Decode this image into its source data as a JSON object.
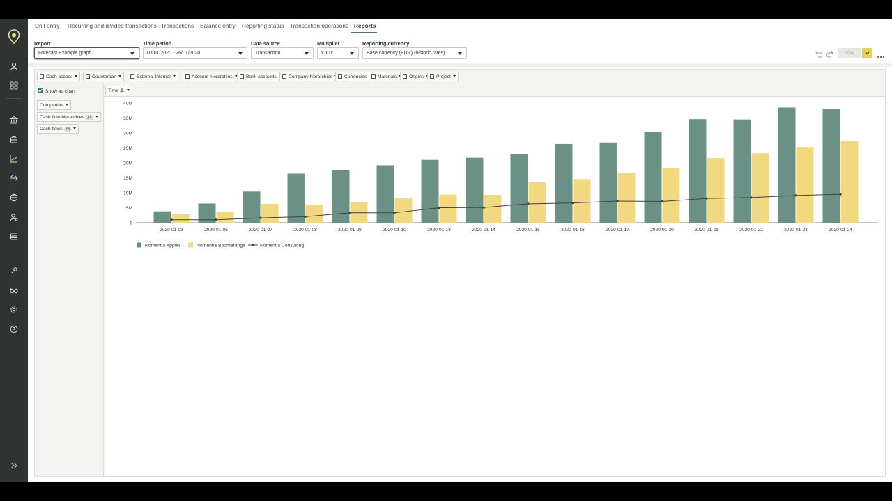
{
  "nav_tabs": [
    {
      "label": "Unit entry"
    },
    {
      "label": "Recurring and divided transactions"
    },
    {
      "label": "Transactions"
    },
    {
      "label": "Balance entry"
    },
    {
      "label": "Reporting status"
    },
    {
      "label": "Transaction operations"
    },
    {
      "label": "Reports",
      "active": true
    }
  ],
  "toolbar": {
    "report": {
      "label": "Report",
      "value": "Forecast Example graph"
    },
    "time_period": {
      "label": "Time period",
      "value": "03/01/2020 - 26/01/2020"
    },
    "data_source": {
      "label": "Data source",
      "value": "Transaction"
    },
    "multiplier": {
      "label": "Multiplier",
      "value": "x 1.00"
    },
    "reporting_currency": {
      "label": "Reporting currency",
      "value": "Base currency (EUR) (historic rates)"
    },
    "save_label": "Save"
  },
  "filters": [
    "Cash access",
    "Counterpart",
    "External Internal",
    "Account hierarchies",
    "Bank accounts",
    "Company hierarchies",
    "Currencies",
    "Materials",
    "Origins",
    "Project"
  ],
  "show_as_chart": {
    "label": "Show as chart",
    "checked": true
  },
  "column_dimension": {
    "label": "Time"
  },
  "row_dimensions": [
    {
      "label": "Companies",
      "fx": false
    },
    {
      "label": "Cash flow hierarchies",
      "fx": true
    },
    {
      "label": "Cash flows",
      "fx": true
    }
  ],
  "fx_label": "ƒX",
  "colors": {
    "accent": "#49776d",
    "apples": "#6b9186",
    "boomeranga": "#f2d97f",
    "consulting": "#3e4341",
    "save_menu": "#e6cf5c"
  },
  "chart_data": {
    "type": "bar",
    "categories": [
      "2020-01-03",
      "2020-01-06",
      "2020-01-07",
      "2020-01-08",
      "2020-01-09",
      "2020-01-10",
      "2020-01-13",
      "2020-01-14",
      "2020-01-15",
      "2020-01-16",
      "2020-01-17",
      "2020-01-20",
      "2020-01-21",
      "2020-01-22",
      "2020-01-23",
      "2020-01-24"
    ],
    "series": [
      {
        "name": "Nomentia Apples",
        "type": "bar",
        "values": [
          3.8,
          6.4,
          10.4,
          16.4,
          17.6,
          19.2,
          21.0,
          21.7,
          23.0,
          26.3,
          26.8,
          30.4,
          34.6,
          34.5,
          38.5,
          38.0
        ]
      },
      {
        "name": "Nomentia Boomeranga",
        "type": "bar",
        "values": [
          2.9,
          3.5,
          6.3,
          6.0,
          6.8,
          8.2,
          9.4,
          9.3,
          13.7,
          14.6,
          16.7,
          18.3,
          21.6,
          23.2,
          25.3,
          27.3
        ]
      },
      {
        "name": "Nomentia Consulting",
        "type": "line",
        "values": [
          1.0,
          1.0,
          1.6,
          2.0,
          3.3,
          3.3,
          5.0,
          5.1,
          6.3,
          6.6,
          7.2,
          7.1,
          8.1,
          8.4,
          9.1,
          9.5
        ]
      }
    ],
    "yticks": [
      "0",
      "5M",
      "10M",
      "15M",
      "20M",
      "25M",
      "30M",
      "35M",
      "40M"
    ],
    "ylim": [
      0,
      40
    ],
    "legend_position": "bottom-left"
  }
}
